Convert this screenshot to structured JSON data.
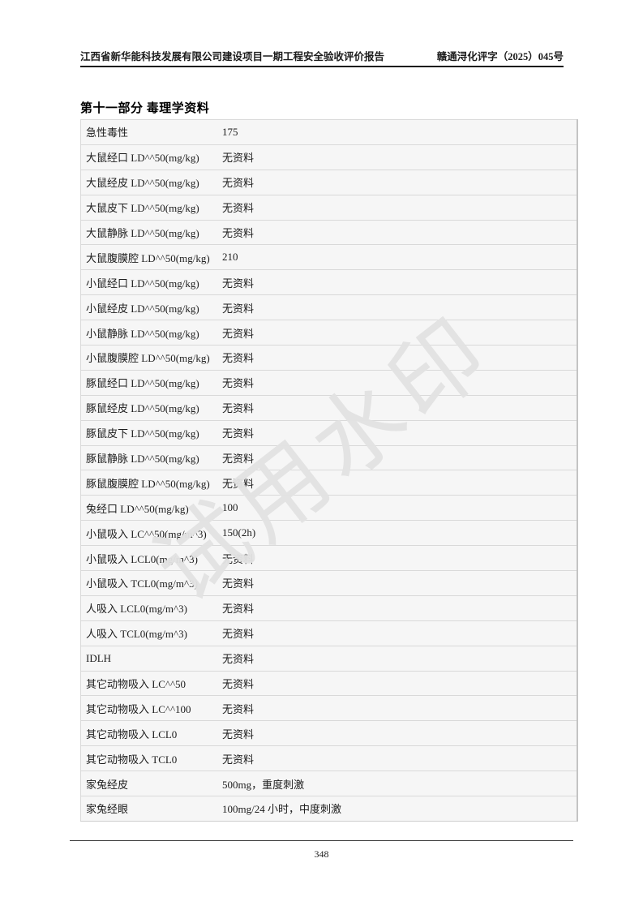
{
  "header": {
    "left_title": "江西省新华能科技发展有限公司建设项目一期工程安全验收评价报告",
    "right_doc_number": "赣通浔化评字（2025）045号"
  },
  "section_title": "第十一部分 毒理学资料",
  "watermark": {
    "text": "试用水印",
    "color": "#e3e3e3"
  },
  "table": {
    "rows": [
      {
        "label": "急性毒性",
        "value": "175"
      },
      {
        "label": "大鼠经口 LD^^50(mg/kg)",
        "value": "无资料"
      },
      {
        "label": "大鼠经皮 LD^^50(mg/kg)",
        "value": "无资料"
      },
      {
        "label": "大鼠皮下 LD^^50(mg/kg)",
        "value": "无资料"
      },
      {
        "label": "大鼠静脉 LD^^50(mg/kg)",
        "value": "无资料"
      },
      {
        "label": "大鼠腹膜腔 LD^^50(mg/kg)",
        "value": "210"
      },
      {
        "label": "小鼠经口 LD^^50(mg/kg)",
        "value": "无资料"
      },
      {
        "label": "小鼠经皮 LD^^50(mg/kg)",
        "value": "无资料"
      },
      {
        "label": "小鼠静脉 LD^^50(mg/kg)",
        "value": "无资料"
      },
      {
        "label": "小鼠腹膜腔 LD^^50(mg/kg)",
        "value": "无资料"
      },
      {
        "label": "豚鼠经口 LD^^50(mg/kg)",
        "value": "无资料"
      },
      {
        "label": "豚鼠经皮 LD^^50(mg/kg)",
        "value": "无资料"
      },
      {
        "label": "豚鼠皮下 LD^^50(mg/kg)",
        "value": "无资料"
      },
      {
        "label": "豚鼠静脉 LD^^50(mg/kg)",
        "value": "无资料"
      },
      {
        "label": "豚鼠腹膜腔 LD^^50(mg/kg)",
        "value": "无资料"
      },
      {
        "label": "兔经口 LD^^50(mg/kg)",
        "value": "100"
      },
      {
        "label": "小鼠吸入 LC^^50(mg/m^3)",
        "value": "150(2h)"
      },
      {
        "label": "小鼠吸入 LCL0(mg/m^3)",
        "value": "无资料"
      },
      {
        "label": "小鼠吸入 TCL0(mg/m^3)",
        "value": "无资料"
      },
      {
        "label": "人吸入 LCL0(mg/m^3)",
        "value": "无资料"
      },
      {
        "label": "人吸入 TCL0(mg/m^3)",
        "value": "无资料"
      },
      {
        "label": "IDLH",
        "value": "无资料"
      },
      {
        "label": "其它动物吸入 LC^^50",
        "value": "无资料"
      },
      {
        "label": "其它动物吸入 LC^^100",
        "value": "无资料"
      },
      {
        "label": "其它动物吸入 LCL0",
        "value": "无资料"
      },
      {
        "label": "其它动物吸入 TCL0",
        "value": "无资料"
      },
      {
        "label": "家兔经皮",
        "value": "500mg，重度刺激"
      },
      {
        "label": "家兔经眼",
        "value": "100mg/24 小时，中度刺激"
      }
    ]
  },
  "footer": {
    "page_number": "348"
  }
}
